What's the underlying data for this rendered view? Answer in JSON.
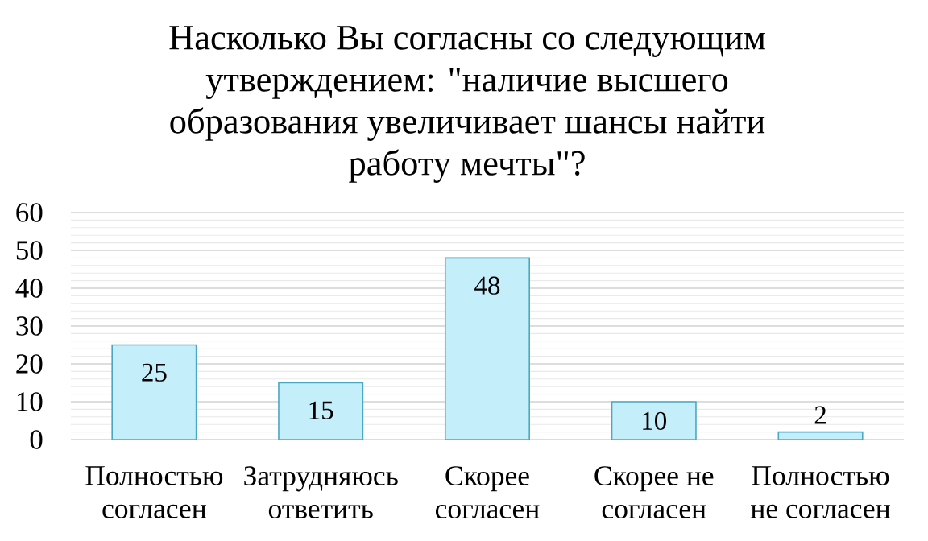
{
  "chart_data": {
    "type": "bar",
    "title": "Насколько Вы согласны со следующим утверждением: \"наличие высшего образования увеличивает шансы найти работу мечты\"?",
    "categories": [
      "Полностью согласен",
      "Затрудняюсь ответить",
      "Скорее согласен",
      "Скорее не согласен",
      "Полностью не согласен"
    ],
    "values": [
      25,
      15,
      48,
      10,
      2
    ],
    "color": "#c4eefa",
    "data_labels": true,
    "grid": "y",
    "ylim": [
      0,
      60
    ],
    "yticks": [
      0,
      {
        "value": 2,
        "label": null
      },
      {
        "value": 4,
        "label": null
      },
      {
        "value": 6,
        "label": null
      },
      {
        "value": 8,
        "label": null
      },
      10,
      {
        "value": 12,
        "label": null
      },
      {
        "value": 14,
        "label": null
      },
      {
        "value": 16,
        "label": null
      },
      {
        "value": 18,
        "label": null
      },
      20,
      {
        "value": 22,
        "label": null
      },
      {
        "value": 24,
        "label": null
      },
      {
        "value": 26,
        "label": null
      },
      {
        "value": 28,
        "label": null
      },
      30,
      {
        "value": 32,
        "label": null
      },
      {
        "value": 34,
        "label": null
      },
      {
        "value": 36,
        "label": null
      },
      {
        "value": 38,
        "label": null
      },
      40,
      {
        "value": 42,
        "label": null
      },
      {
        "value": 44,
        "label": null
      },
      {
        "value": 46,
        "label": null
      },
      {
        "value": 48,
        "label": null
      },
      50,
      {
        "value": 52,
        "label": null
      },
      {
        "value": 54,
        "label": null
      },
      {
        "value": 56,
        "label": null
      },
      {
        "value": 58,
        "label": null
      },
      60
    ]
  }
}
